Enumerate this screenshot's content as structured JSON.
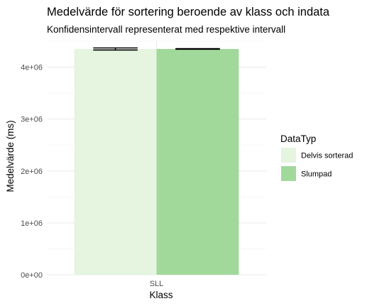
{
  "chart_data": {
    "type": "bar",
    "title": "Medelvärde för sortering beroende av klass och indata",
    "subtitle": "Konfidensintervall representerat med respektive intervall",
    "xlabel": "Klass",
    "ylabel": "Medelvärde (ms)",
    "categories": [
      "SLL"
    ],
    "series": [
      {
        "name": "Delvis sorterad",
        "values": [
          4350000
        ],
        "ci_low": [
          4330000
        ],
        "ci_high": [
          4370000
        ],
        "color": "#e5f5e0"
      },
      {
        "name": "Slumpad",
        "values": [
          4350000
        ],
        "ci_low": [
          4345000
        ],
        "ci_high": [
          4355000
        ],
        "color": "#a1d99b"
      }
    ],
    "ylim": [
      0,
      4500000
    ],
    "yticks": [
      0,
      1000000,
      2000000,
      3000000,
      4000000
    ],
    "ytick_labels": [
      "0e+00",
      "1e+06",
      "2e+06",
      "3e+06",
      "4e+06"
    ],
    "grid": true,
    "legend": {
      "title": "DataTyp",
      "position": "right"
    }
  }
}
